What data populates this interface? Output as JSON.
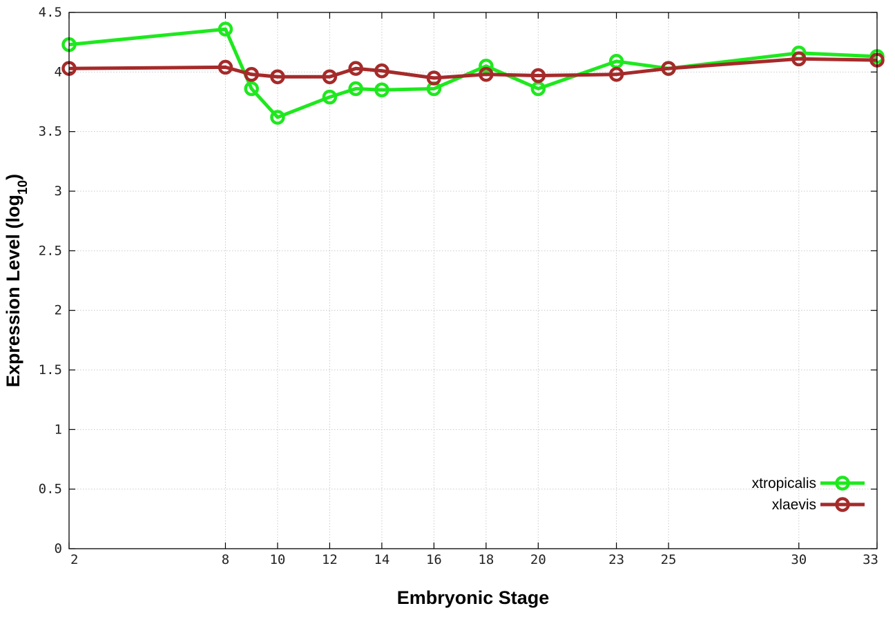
{
  "chart_data": {
    "type": "line",
    "title": "",
    "xlabel": "Embryonic Stage",
    "ylabel": {
      "main": "Expression Level (log",
      "sub": "10",
      "close": ")"
    },
    "x_ticks": [
      2,
      8,
      10,
      12,
      14,
      16,
      18,
      20,
      23,
      25,
      30,
      33
    ],
    "x_tick_labels": [
      "2",
      "8",
      "10",
      "12",
      "14",
      "16",
      "18",
      "20",
      "23",
      "25",
      "30",
      "33"
    ],
    "x_points": [
      2,
      8,
      9,
      10,
      12,
      13,
      14,
      16,
      18,
      20,
      23,
      25,
      30,
      33
    ],
    "y_ticks": [
      0,
      0.5,
      1,
      1.5,
      2,
      2.5,
      3,
      3.5,
      4,
      4.5
    ],
    "y_tick_labels": [
      "0",
      "0.5",
      "1",
      "1.5",
      "2",
      "2.5",
      "3",
      "3.5",
      "4",
      "4.5"
    ],
    "ylim": [
      0,
      4.5
    ],
    "grid": true,
    "legend_position": "bottom-right",
    "series": [
      {
        "name": "xtropicalis",
        "color": "#1ee81e",
        "x": [
          2,
          8,
          9,
          10,
          12,
          13,
          14,
          16,
          18,
          20,
          23,
          25,
          30,
          33
        ],
        "values": [
          4.23,
          4.36,
          3.86,
          3.62,
          3.79,
          3.86,
          3.85,
          3.86,
          4.05,
          3.86,
          4.09,
          4.03,
          4.16,
          4.13
        ]
      },
      {
        "name": "xlaevis",
        "color": "#a52a2a",
        "x": [
          2,
          8,
          9,
          10,
          12,
          13,
          14,
          16,
          18,
          20,
          23,
          25,
          30,
          33
        ],
        "values": [
          4.03,
          4.04,
          3.98,
          3.96,
          3.96,
          4.03,
          4.01,
          3.95,
          3.98,
          3.97,
          3.98,
          4.03,
          4.11,
          4.1
        ]
      }
    ]
  }
}
